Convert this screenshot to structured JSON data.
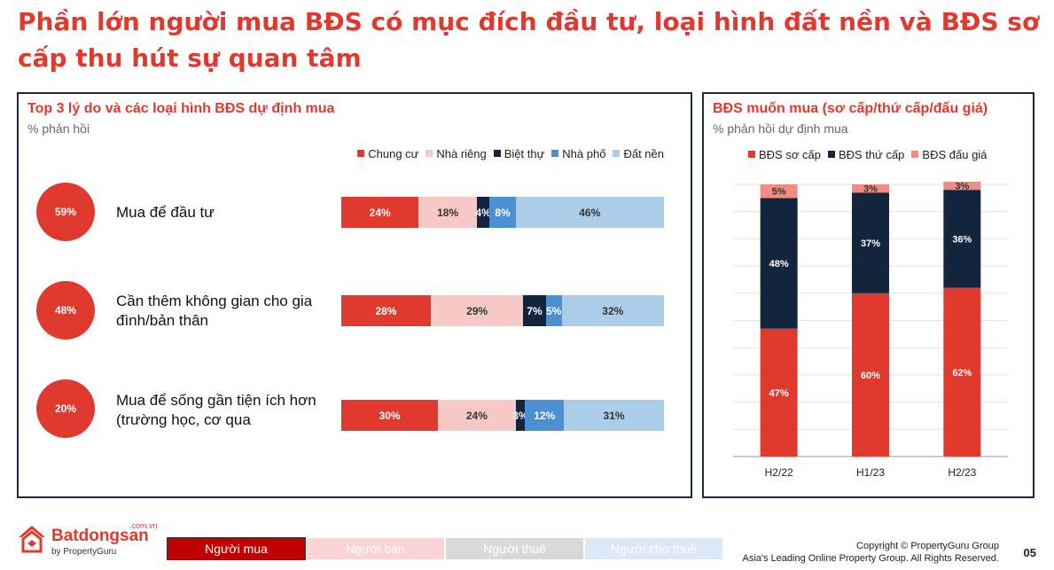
{
  "page": {
    "title": "Phần lớn người mua BĐS có mục đích đầu tư, loại hình đất nền và BĐS sơ cấp thu hút sự quan tâm",
    "page_number": "05"
  },
  "left_panel": {
    "title": "Top 3 lý do và các loại hình BĐS dự định mua",
    "subtitle": "% phản hồi",
    "legend": [
      {
        "name": "Chung cư",
        "color": "#e03a2f"
      },
      {
        "name": "Nhà riêng",
        "color": "#f7c9c6"
      },
      {
        "name": "Biệt thự",
        "color": "#13243d"
      },
      {
        "name": "Nhà phố",
        "color": "#4a90d2"
      },
      {
        "name": "Đất nền",
        "color": "#abcde8"
      }
    ],
    "rows": [
      {
        "pct": "59%",
        "label": "Mua để đầu tư",
        "values": [
          24,
          18,
          4,
          8,
          46
        ],
        "labels": [
          "24%",
          "18%",
          "4%",
          "8%",
          "46%"
        ]
      },
      {
        "pct": "48%",
        "label": "Cần thêm không gian cho gia đình/bản thân",
        "values": [
          28,
          29,
          7,
          5,
          32
        ],
        "labels": [
          "28%",
          "29%",
          "7%",
          "5%",
          "32%"
        ]
      },
      {
        "pct": "20%",
        "label": "Mua để sống gần tiện ích hơn (trường học, cơ qua",
        "values": [
          30,
          24,
          3,
          12,
          31
        ],
        "labels": [
          "30%",
          "24%",
          "3%",
          "12%",
          "31%"
        ]
      }
    ]
  },
  "chart_data": {
    "type": "bar",
    "title": "BĐS muốn mua (sơ cấp/thứ cấp/đấu giá)",
    "subtitle": "% phản hồi dự định mua",
    "categories": [
      "H2/22",
      "H1/23",
      "H2/23"
    ],
    "series": [
      {
        "name": "BĐS sơ cấp",
        "color": "#e03a2f",
        "values": [
          47,
          60,
          62
        ],
        "labels": [
          "47%",
          "60%",
          "62%"
        ]
      },
      {
        "name": "BĐS thứ cấp",
        "color": "#13243d",
        "values": [
          48,
          37,
          36
        ],
        "labels": [
          "48%",
          "37%",
          "36%"
        ]
      },
      {
        "name": "BĐS đấu giá",
        "color": "#f28b82",
        "values": [
          5,
          3,
          3
        ],
        "labels": [
          "5%",
          "3%",
          "3%"
        ]
      }
    ],
    "ylim": [
      0,
      100
    ],
    "stacked": true,
    "grid": true
  },
  "footer": {
    "logo_name": "Batdongsan",
    "logo_com": ".com.vn",
    "logo_by": "by PropertyGuru",
    "tabs": [
      {
        "label": "Người mua",
        "bg": "#c00000"
      },
      {
        "label": "Người bán",
        "bg": "#fad4d4"
      },
      {
        "label": "Người thuê",
        "bg": "#d9d9d9"
      },
      {
        "label": "Người cho thuê",
        "bg": "#dbe8f5"
      }
    ],
    "copyright_line1": "Copyright © PropertyGuru Group",
    "copyright_line2": "Asia's Leading Online Property Group. All Rights Reserved."
  }
}
